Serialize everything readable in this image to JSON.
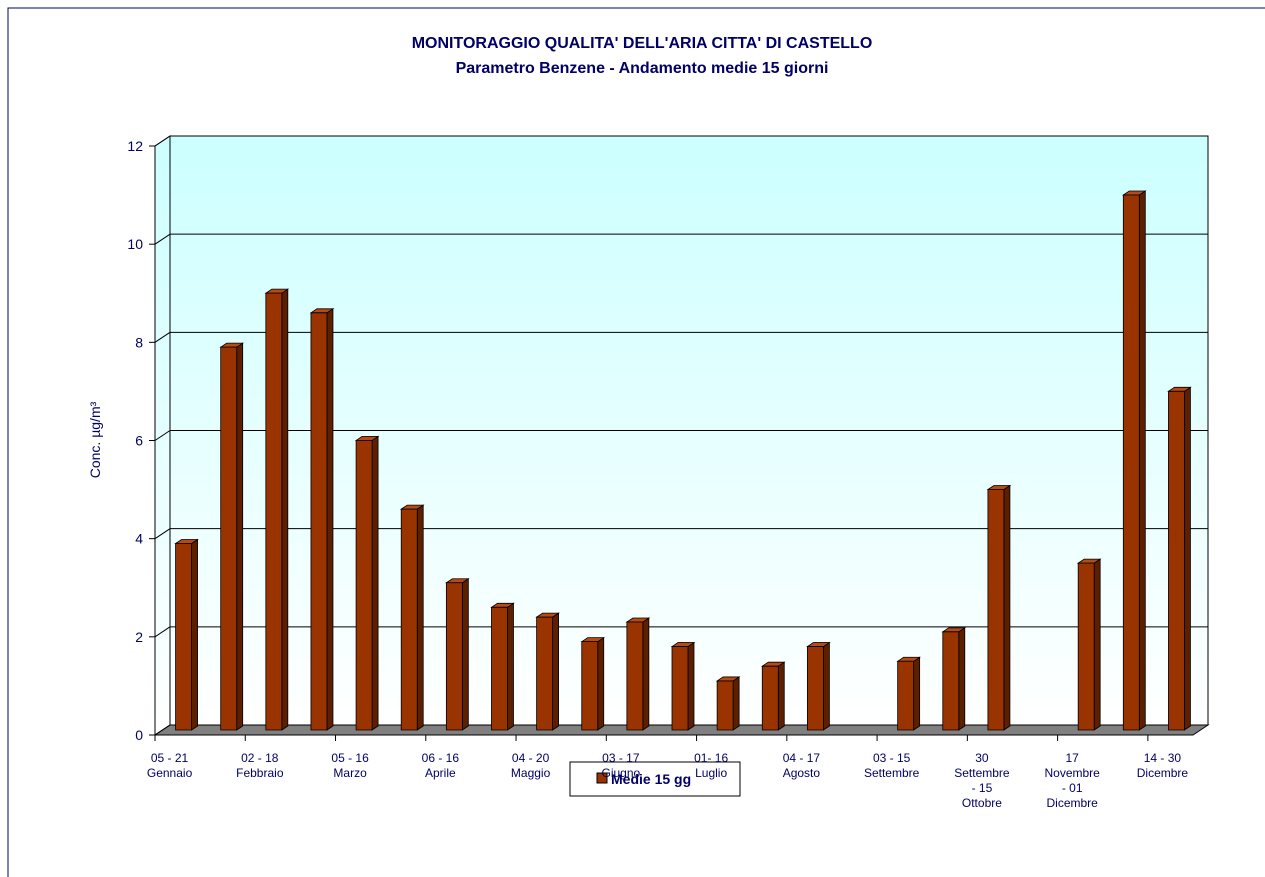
{
  "chart_data": {
    "type": "bar",
    "title": "MONITORAGGIO QUALITA' DELL'ARIA CITTA' DI CASTELLO",
    "subtitle": "Parametro Benzene - Andamento medie 15 giorni",
    "y_label": "Conc.  µg/m³",
    "categories": [
      "05 - 21\nGennaio",
      null,
      "02 - 18\nFebbraio",
      null,
      "05 - 16\nMarzo",
      null,
      "06 - 16\nAprile",
      null,
      "04 - 20\nMaggio",
      null,
      "03 - 17\nGiugno",
      null,
      "01- 16\nLuglio",
      null,
      "04 - 17\nAgosto",
      null,
      "03 - 15\nSettembre",
      null,
      "30\nSettembre\n- 15\nOttobre",
      null,
      "17\nNovembre\n- 01\nDicembre",
      null,
      "14 - 30\nDicembre"
    ],
    "series": [
      {
        "name": "Medie 15 gg",
        "color": "#993300",
        "values": [
          3.8,
          7.8,
          8.9,
          8.5,
          5.9,
          4.5,
          3.0,
          2.5,
          2.3,
          1.8,
          2.2,
          1.7,
          1.0,
          1.3,
          1.7,
          null,
          1.4,
          2.0,
          4.9,
          null,
          3.4,
          10.9,
          6.9
        ]
      }
    ],
    "ylim": [
      0,
      12
    ],
    "yticks": [
      0,
      2,
      4,
      6,
      8,
      10,
      12
    ],
    "grid": true
  }
}
